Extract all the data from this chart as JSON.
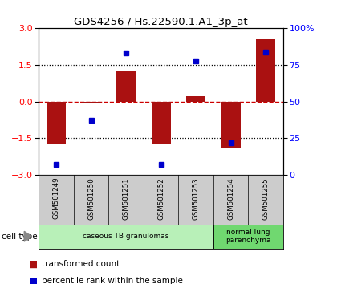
{
  "title": "GDS4256 / Hs.22590.1.A1_3p_at",
  "samples": [
    "GSM501249",
    "GSM501250",
    "GSM501251",
    "GSM501252",
    "GSM501253",
    "GSM501254",
    "GSM501255"
  ],
  "red_values": [
    -1.75,
    -0.05,
    1.25,
    -1.75,
    0.2,
    -1.9,
    2.55
  ],
  "blue_values_pct": [
    7,
    37,
    83,
    7,
    78,
    22,
    84
  ],
  "ylim": [
    -3,
    3
  ],
  "y_ticks_left": [
    -3,
    -1.5,
    0,
    1.5,
    3
  ],
  "y_ticks_right_pct": [
    0,
    25,
    50,
    75,
    100
  ],
  "bar_color": "#aa1111",
  "dot_color": "#0000cc",
  "zero_line_color": "#cc0000",
  "dotted_line_color": "#000000",
  "bg_color": "#ffffff",
  "plot_bg": "#ffffff",
  "legend_red_label": "transformed count",
  "legend_blue_label": "percentile rank within the sample",
  "bar_width": 0.55,
  "cell_type_label": "cell type",
  "ct_color_1": "#b8f0b8",
  "ct_color_2": "#70d870",
  "label_area_color": "#cccccc"
}
